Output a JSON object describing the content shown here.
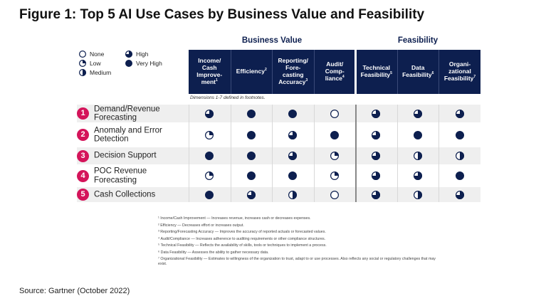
{
  "title": "Figure 1: Top 5 AI Use Cases by Business Value and Feasibility",
  "chart_data": {
    "type": "table",
    "groups": [
      {
        "label": "Business Value",
        "columns": [
          0,
          1,
          2,
          3
        ]
      },
      {
        "label": "Feasibility",
        "columns": [
          4,
          5,
          6
        ]
      }
    ],
    "columns": [
      {
        "label": "Income/ Cash Improve- ment",
        "sup": "1"
      },
      {
        "label": "Efficiency",
        "sup": "2"
      },
      {
        "label": "Reporting/ Fore- casting Accuracy",
        "sup": "3"
      },
      {
        "label": "Audit/ Comp- liance",
        "sup": "4"
      },
      {
        "label": "Technical Feasibility",
        "sup": "5"
      },
      {
        "label": "Data Feasibility",
        "sup": "6"
      },
      {
        "label": "Organi- zational Feasibility",
        "sup": "7"
      }
    ],
    "legend": [
      {
        "label": "None",
        "level": 0
      },
      {
        "label": "Low",
        "level": 0.25
      },
      {
        "label": "Medium",
        "level": 0.5
      },
      {
        "label": "High",
        "level": 0.75
      },
      {
        "label": "Very High",
        "level": 1
      }
    ],
    "rows": [
      {
        "num": "1",
        "label": "Demand/Revenue Forecasting",
        "values": [
          0.75,
          1,
          1,
          0,
          0.75,
          0.75,
          0.75
        ]
      },
      {
        "num": "2",
        "label": "Anomaly and Error Detection",
        "values": [
          0.25,
          1,
          0.75,
          1,
          0.75,
          1,
          1
        ]
      },
      {
        "num": "3",
        "label": "Decision Support",
        "values": [
          1,
          1,
          0.75,
          0.25,
          0.75,
          0.5,
          0.5
        ]
      },
      {
        "num": "4",
        "label": "POC Revenue Forecasting",
        "values": [
          0.25,
          1,
          1,
          0.25,
          0.75,
          0.75,
          1
        ]
      },
      {
        "num": "5",
        "label": "Cash Collections",
        "values": [
          1,
          0.75,
          0.5,
          0,
          0.75,
          0.5,
          0.75
        ]
      }
    ],
    "note": "Dimensions 1-7 defined in footnotes.",
    "colors": {
      "header": "#0d1f4f",
      "mark": "#0d1f4f",
      "badge": "#d4145a",
      "stripe": "#efefef"
    }
  },
  "footnotes": [
    "¹ Income/Cash Improvement — Increases revenue, increases cash or decreases expenses.",
    "² Efficiency — Decreases effort or increases output.",
    "³ Reporting/Forecasting Accuracy — Improves the accuracy of reported actuals or forecasted values.",
    "⁴ Audit/Compliance — Increases adherence to auditing requirements or other compliance structures.",
    "⁵ Technical Feasibility — Reflects the availability of skills, tools or techniques to implement a process.",
    "⁶ Data Feasibility — Assesses the ability to gather necessary data.",
    "⁷ Organizational Feasibility — Estimates to willingness of the organization to trust, adapt to or use processes. Also reflects any social or regulatory challenges that may exist."
  ],
  "source": "Source: Gartner (October 2022)"
}
